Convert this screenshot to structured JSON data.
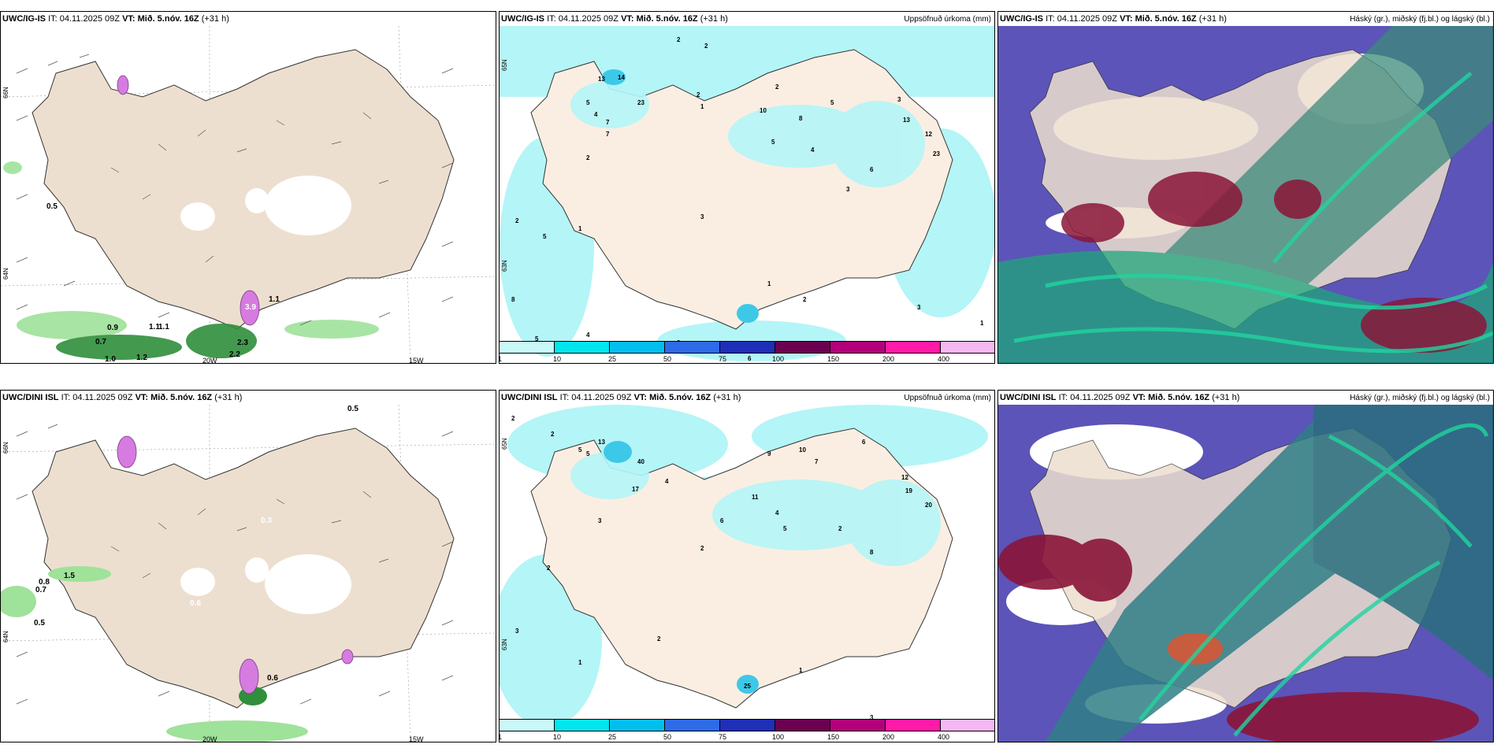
{
  "panels": {
    "p1": {
      "model": "UWC/IG-IS",
      "it_label": "IT:",
      "it_value": "04.11.2025 09Z",
      "vt_label": "VT:",
      "vt_value": "Mið. 5.nóv. 16Z",
      "lead": "(+31 h)"
    },
    "p2": {
      "model": "UWC/IG-IS",
      "it_label": "IT:",
      "it_value": "04.11.2025 09Z",
      "vt_label": "VT:",
      "vt_value": "Mið. 5.nóv. 16Z",
      "lead": "(+31 h)",
      "right": "Uppsöfnuð úrkoma (mm)"
    },
    "p3": {
      "model": "UWC/IG-IS",
      "it_label": "IT:",
      "it_value": "04.11.2025 09Z",
      "vt_label": "VT:",
      "vt_value": "Mið. 5.nóv. 16Z",
      "lead": "(+31 h)",
      "right": "Háský (gr.), miðský (fj.bl.) og lágský (bl.)"
    },
    "p4": {
      "model": "UWC/DINI ISL",
      "it_label": "IT:",
      "it_value": "04.11.2025 09Z",
      "vt_label": "VT:",
      "vt_value": "Mið. 5.nóv. 16Z",
      "lead": "(+31 h)"
    },
    "p5": {
      "model": "UWC/DINI ISL",
      "it_label": "IT:",
      "it_value": "04.11.2025 09Z",
      "vt_label": "VT:",
      "vt_value": "Mið. 5.nóv. 16Z",
      "lead": "(+31 h)",
      "right": "Uppsöfnuð úrkoma (mm)"
    },
    "p6": {
      "model": "UWC/DINI ISL",
      "it_label": "IT:",
      "it_value": "04.11.2025 09Z",
      "vt_label": "VT:",
      "vt_value": "Mið. 5.nóv. 16Z",
      "lead": "(+31 h)",
      "right": "Háský (gr.), miðský (fj.bl.) og lágský (bl.)"
    }
  },
  "axis": {
    "lon_20w": "20W",
    "lon_15w": "15W",
    "lat_66n": "66N",
    "lat_64n": "64N",
    "lat_65n": "65N",
    "lat_63n": "63N"
  },
  "colorbar": {
    "labels": [
      "1",
      "10",
      "25",
      "50",
      "75",
      "100",
      "150",
      "200",
      "400"
    ],
    "colors": [
      "#c8f8f8",
      "#00e5ee",
      "#00bfef",
      "#2e6be6",
      "#1f2fb8",
      "#6b0050",
      "#b3007a",
      "#ff1aa8",
      "#f5b8f0"
    ]
  },
  "wind_values_top": [
    "0.5",
    "0.9",
    "1.1",
    "1.1",
    "0.7",
    "1.0",
    "1.2",
    "2.2",
    "2.3",
    "3.9",
    "1.1"
  ],
  "wind_values_bottom": [
    "0.5",
    "0.7",
    "0.8",
    "1.5",
    "0.6",
    "0.3",
    "0.6",
    "0.5"
  ],
  "precip_values_top": [
    "2",
    "2",
    "13",
    "14",
    "23",
    "5",
    "4",
    "7",
    "2",
    "1",
    "2",
    "10",
    "8",
    "5",
    "3",
    "13",
    "12",
    "23",
    "4",
    "5",
    "2",
    "7",
    "5",
    "8",
    "3",
    "5",
    "2",
    "6",
    "1",
    "4",
    "2",
    "1",
    "2",
    "6",
    "3",
    "1",
    "3"
  ],
  "precip_values_bottom": [
    "2",
    "2",
    "13",
    "5",
    "40",
    "17",
    "10",
    "7",
    "6",
    "9",
    "12",
    "20",
    "19",
    "5",
    "4",
    "3",
    "2",
    "8",
    "2",
    "3",
    "11",
    "4",
    "5",
    "6",
    "2",
    "1",
    "3",
    "1",
    "2",
    "25"
  ]
}
